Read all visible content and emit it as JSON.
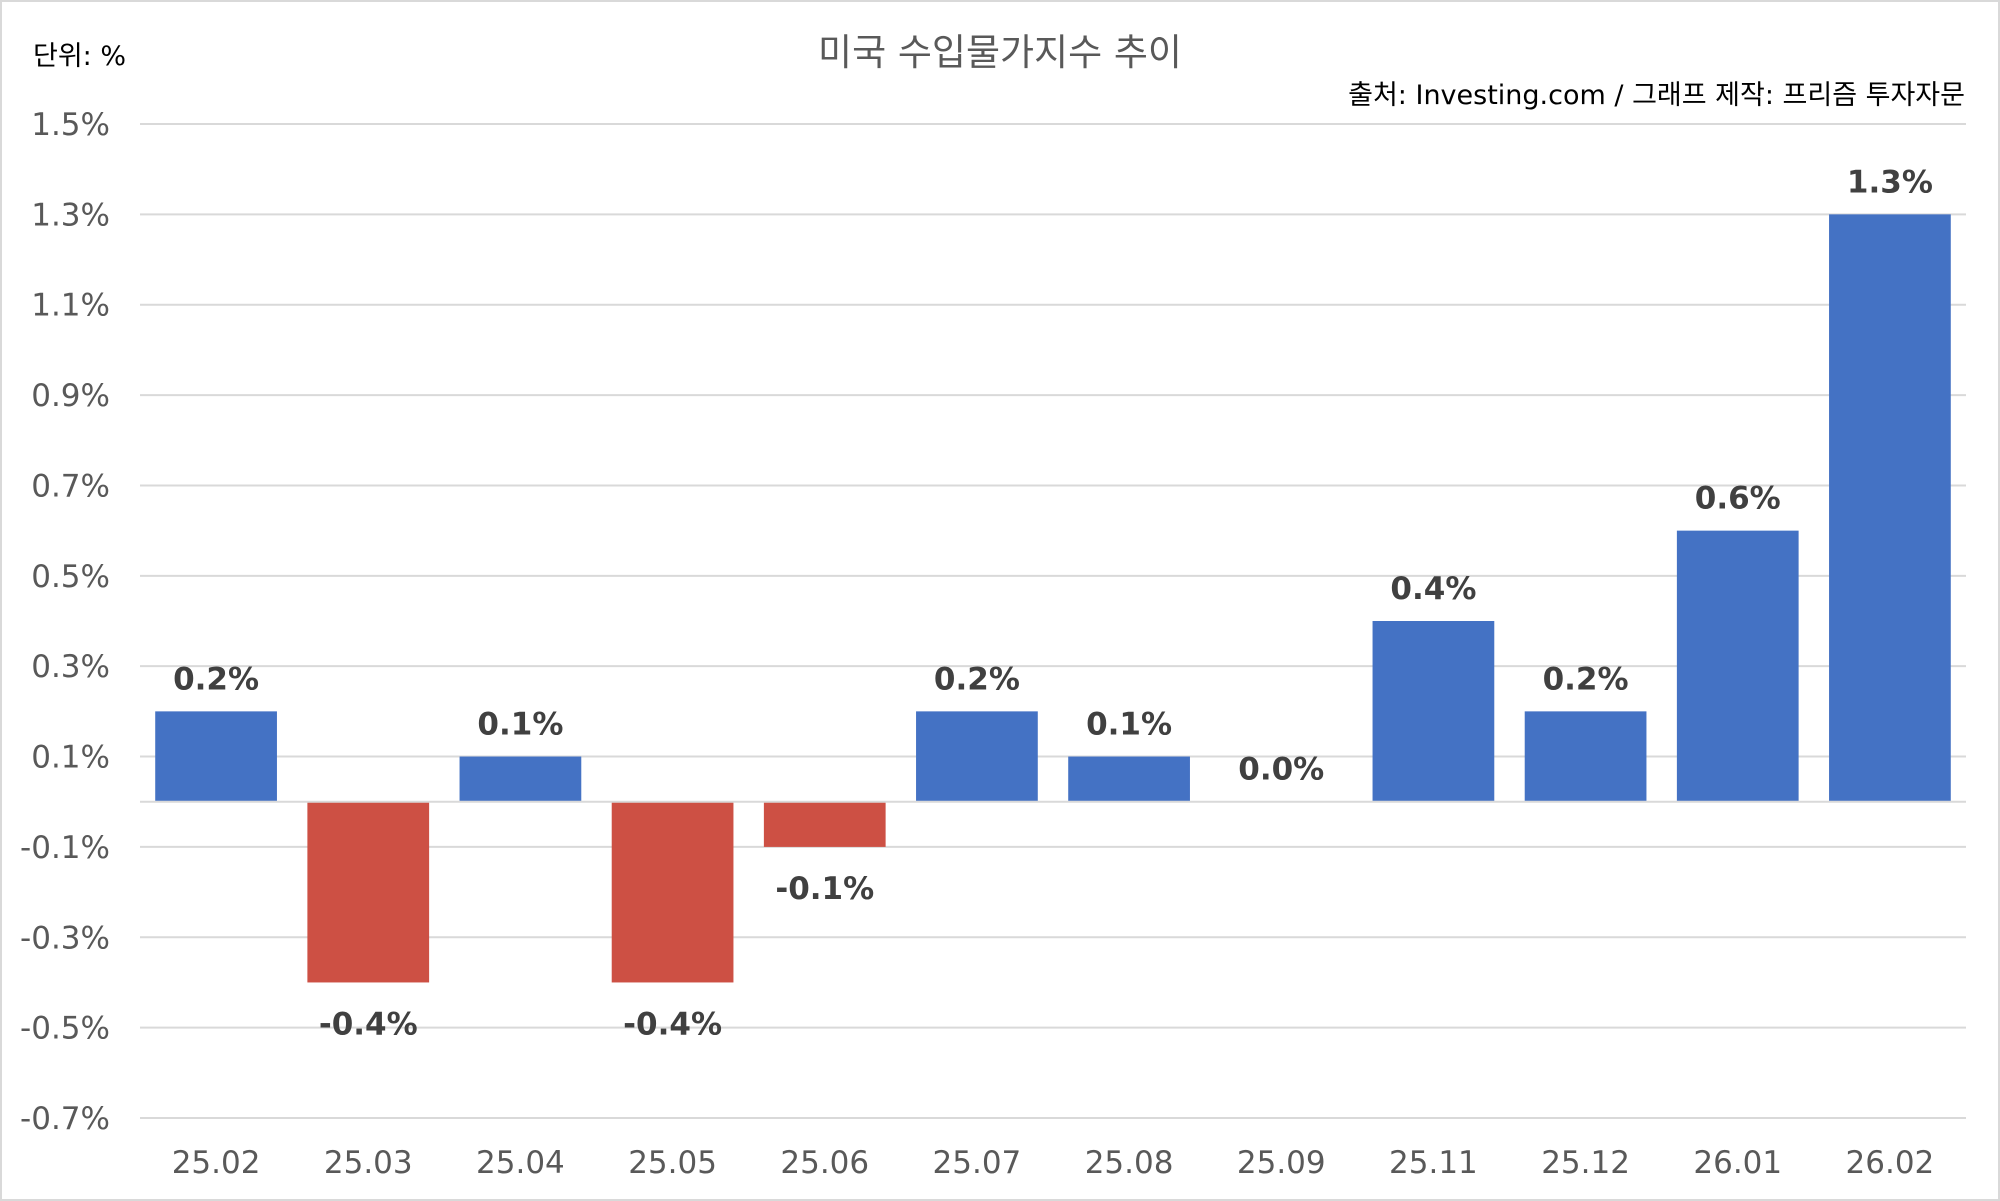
{
  "chart_data": {
    "type": "bar",
    "title": "미국 수입물가지수 추이",
    "unit_label": "단위: %",
    "source": "출처: Investing.com / 그래프 제작: 프리즘 투자자문",
    "categories": [
      "25.02",
      "25.03",
      "25.04",
      "25.05",
      "25.06",
      "25.07",
      "25.08",
      "25.09",
      "25.11",
      "25.12",
      "26.01",
      "26.02"
    ],
    "values": [
      0.2,
      -0.4,
      0.1,
      -0.4,
      -0.1,
      0.2,
      0.1,
      0.0,
      0.4,
      0.2,
      0.6,
      1.3
    ],
    "data_labels": [
      "0.2%",
      "-0.4%",
      "0.1%",
      "-0.4%",
      "-0.1%",
      "0.2%",
      "0.1%",
      "0.0%",
      "0.4%",
      "0.2%",
      "0.6%",
      "1.3%"
    ],
    "y_ticks": [
      1.5,
      1.3,
      1.1,
      0.9,
      0.7,
      0.5,
      0.3,
      0.1,
      -0.1,
      -0.3,
      -0.5,
      -0.7
    ],
    "y_tick_labels": [
      "1.5%",
      "1.3%",
      "1.1%",
      "0.9%",
      "0.7%",
      "0.5%",
      "0.3%",
      "0.1%",
      "-0.1%",
      "-0.3%",
      "-0.5%",
      "-0.7%"
    ],
    "ylim": [
      -0.7,
      1.5
    ],
    "grid": true,
    "legend": "none",
    "colors": {
      "positive": "#4472c4",
      "negative": "#cd5044"
    }
  }
}
